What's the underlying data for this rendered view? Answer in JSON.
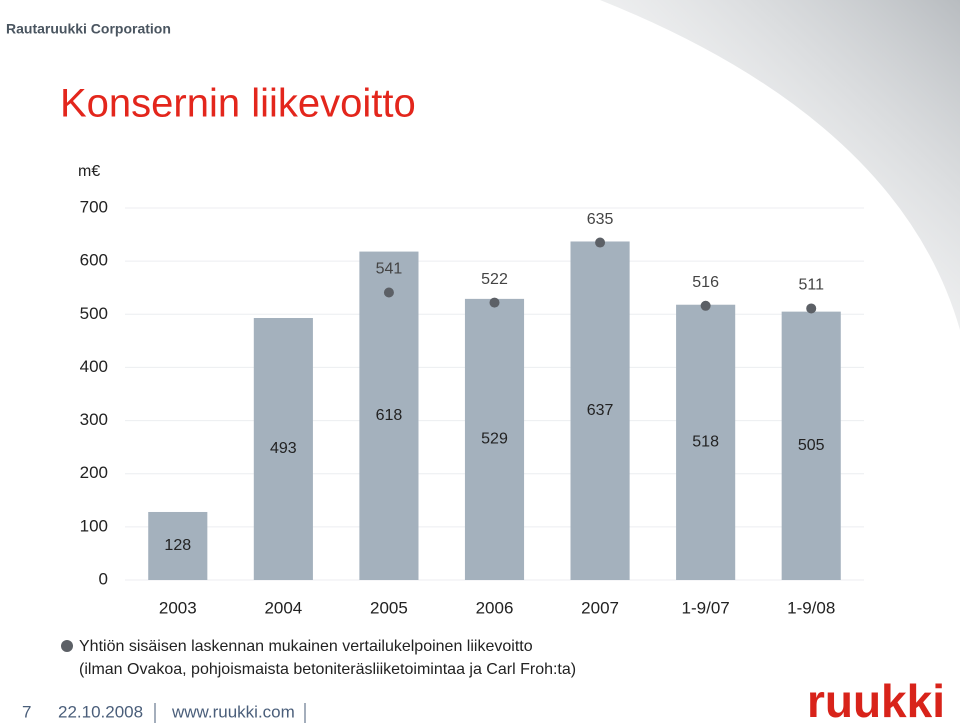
{
  "header": {
    "company": "Rautaruukki Corporation"
  },
  "chart_data": {
    "type": "bar",
    "title": "Konsernin liikevoitto",
    "y_label": "m€",
    "categories": [
      "2003",
      "2004",
      "2005",
      "2006",
      "2007",
      "1-9/07",
      "1-9/08"
    ],
    "series": [
      {
        "type": "bar",
        "color": "#a4b1bd",
        "values": [
          128,
          493,
          618,
          529,
          637,
          518,
          505
        ]
      },
      {
        "type": "scatter",
        "name": "Yhtiön sisäisen laskennan mukainen vertailukelpoinen liikevoitto",
        "color": "#5c6066",
        "values": [
          null,
          null,
          541,
          522,
          635,
          516,
          511
        ]
      }
    ],
    "legend_note": "(ilman Ovakoa, pohjoismaista betoniteräsliiketoimintaa ja Carl Froh:ta)",
    "ylim": [
      0,
      700
    ],
    "yticks": [
      0,
      100,
      200,
      300,
      400,
      500,
      600,
      700
    ],
    "grid": true
  },
  "footer": {
    "page": "7",
    "date": "22.10.2008",
    "url": "www.ruukki.com",
    "logo": "ruukki"
  }
}
